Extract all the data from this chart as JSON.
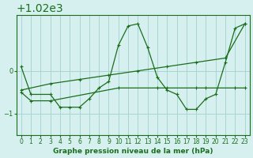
{
  "title": "Graphe pression niveau de la mer (hPa)",
  "bg_color": "#d6f0f0",
  "grid_color": "#aad4d4",
  "line_color": "#1a6e1a",
  "x_ticks": [
    0,
    1,
    2,
    3,
    4,
    5,
    6,
    7,
    8,
    9,
    10,
    11,
    12,
    13,
    14,
    15,
    16,
    17,
    18,
    19,
    20,
    21,
    22,
    23
  ],
  "y_ticks": [
    1019,
    1020
  ],
  "ylim": [
    1018.5,
    1021.3
  ],
  "xlim": [
    -0.5,
    23.5
  ],
  "series1_x": [
    0,
    1,
    3,
    4,
    5,
    6,
    7,
    8,
    9,
    10,
    11,
    12,
    13,
    14,
    15,
    16,
    17,
    18,
    19,
    20,
    21,
    22,
    23
  ],
  "series1_y": [
    1020.1,
    1019.45,
    1019.45,
    1019.15,
    1019.15,
    1019.15,
    1019.35,
    1019.6,
    1019.75,
    1020.6,
    1021.05,
    1021.1,
    1020.55,
    1019.85,
    1019.55,
    1019.45,
    1019.1,
    1019.1,
    1019.35,
    1019.45,
    1020.2,
    1021.0,
    1021.1
  ],
  "series2_x": [
    0,
    1,
    3,
    10,
    14,
    15,
    18,
    19,
    22,
    23
  ],
  "series2_y": [
    1019.5,
    1019.3,
    1019.3,
    1019.6,
    1019.6,
    1019.6,
    1019.6,
    1019.6,
    1019.6,
    1019.6
  ],
  "series3_x": [
    0,
    3,
    6,
    9,
    12,
    15,
    18,
    21,
    23
  ],
  "series3_y": [
    1019.55,
    1019.7,
    1019.8,
    1019.9,
    1020.0,
    1020.1,
    1020.2,
    1020.3,
    1021.1
  ]
}
